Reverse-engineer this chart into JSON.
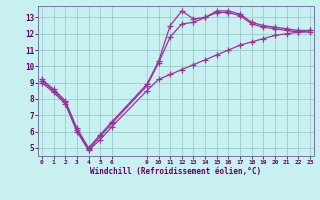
{
  "xlabel": "Windchill (Refroidissement éolien,°C)",
  "bg_color": "#c8f0f0",
  "line_color": "#993399",
  "grid_color": "#99cccc",
  "spine_color": "#7777aa",
  "tick_color": "#660066",
  "xticks_show": [
    0,
    1,
    2,
    3,
    4,
    5,
    6,
    9,
    10,
    11,
    12,
    13,
    14,
    15,
    16,
    17,
    18,
    19,
    20,
    21,
    22,
    23
  ],
  "line1_x": [
    0,
    1,
    2,
    3,
    4,
    5,
    6,
    9,
    10,
    11,
    12,
    13,
    14,
    15,
    16,
    17,
    18,
    19,
    20,
    21,
    22,
    23
  ],
  "line1_y": [
    9.2,
    8.6,
    7.9,
    6.2,
    5.0,
    5.8,
    6.6,
    8.9,
    10.3,
    12.5,
    13.4,
    12.9,
    13.0,
    13.4,
    13.4,
    13.2,
    12.7,
    12.5,
    12.4,
    12.3,
    12.2,
    12.2
  ],
  "line2_x": [
    0,
    1,
    2,
    3,
    4,
    5,
    6,
    9,
    10,
    11,
    12,
    13,
    14,
    15,
    16,
    17,
    18,
    19,
    20,
    21,
    22,
    23
  ],
  "line2_y": [
    9.1,
    8.5,
    7.8,
    6.1,
    4.9,
    5.7,
    6.5,
    8.8,
    10.2,
    11.8,
    12.6,
    12.7,
    13.0,
    13.3,
    13.3,
    13.1,
    12.6,
    12.4,
    12.3,
    12.2,
    12.1,
    12.1
  ],
  "line3_x": [
    0,
    1,
    2,
    3,
    4,
    5,
    6,
    9,
    10,
    11,
    12,
    13,
    14,
    15,
    16,
    17,
    18,
    19,
    20,
    21,
    22,
    23
  ],
  "line3_y": [
    9.0,
    8.4,
    7.7,
    6.0,
    4.85,
    5.5,
    6.3,
    8.5,
    9.2,
    9.5,
    9.8,
    10.1,
    10.4,
    10.7,
    11.0,
    11.3,
    11.5,
    11.7,
    11.9,
    12.0,
    12.1,
    12.2
  ],
  "ylim": [
    4.5,
    13.7
  ],
  "yticks": [
    5,
    6,
    7,
    8,
    9,
    10,
    11,
    12,
    13
  ],
  "xlim": [
    -0.3,
    23.3
  ]
}
